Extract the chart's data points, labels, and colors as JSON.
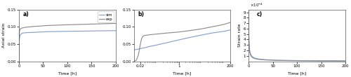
{
  "panel_a": {
    "label": "a)",
    "xlabel": "Time [h]",
    "ylabel": "Axial strain",
    "xlim": [
      0,
      200
    ],
    "ylim": [
      0,
      0.15
    ],
    "yticks": [
      0,
      0.05,
      0.1,
      0.15
    ],
    "xticks": [
      0,
      50,
      100,
      150,
      200
    ],
    "sim_color": "#7b9dd4",
    "exp_color": "#888888",
    "legend_labels": [
      "sim",
      "exp"
    ],
    "sim_x": [
      0,
      0.5,
      1,
      1.5,
      2,
      3,
      5,
      8,
      15,
      30,
      60,
      100,
      150,
      200
    ],
    "sim_y": [
      0.0,
      0.055,
      0.065,
      0.07,
      0.073,
      0.077,
      0.08,
      0.082,
      0.083,
      0.084,
      0.086,
      0.087,
      0.088,
      0.089
    ],
    "exp_x": [
      0,
      0.5,
      1,
      1.5,
      2,
      3,
      5,
      8,
      15,
      30,
      60,
      100,
      150,
      200
    ],
    "exp_y": [
      0.0,
      0.075,
      0.085,
      0.089,
      0.091,
      0.094,
      0.096,
      0.097,
      0.099,
      0.101,
      0.104,
      0.106,
      0.108,
      0.11
    ]
  },
  "panel_b": {
    "label": "b)",
    "xlabel": "Time [h]",
    "xlim_log": [
      0.01,
      200
    ],
    "ylim": [
      0,
      0.15
    ],
    "yticks": [
      0,
      0.05,
      0.1,
      0.15
    ],
    "xticks_log": [
      0.02,
      1,
      200
    ],
    "xtick_labels": [
      "0.02",
      "1",
      "200"
    ],
    "sim_color": "#7b9dd4",
    "exp_color": "#888888",
    "sim_x": [
      0.01,
      0.015,
      0.02,
      0.03,
      0.05,
      0.1,
      0.3,
      1,
      3,
      10,
      30,
      100,
      200
    ],
    "sim_y": [
      0.033,
      0.035,
      0.037,
      0.039,
      0.043,
      0.047,
      0.054,
      0.062,
      0.069,
      0.076,
      0.082,
      0.087,
      0.091
    ],
    "exp_x": [
      0.01,
      0.013,
      0.016,
      0.019,
      0.022,
      0.025,
      0.03,
      0.05,
      0.1,
      0.3,
      1,
      3,
      10,
      30,
      100,
      200
    ],
    "exp_y": [
      0.0,
      0.003,
      0.018,
      0.045,
      0.065,
      0.072,
      0.075,
      0.077,
      0.079,
      0.082,
      0.085,
      0.089,
      0.094,
      0.1,
      0.107,
      0.113
    ]
  },
  "panel_c": {
    "label": "c)",
    "xlabel": "Time [h]",
    "ylabel": "Strain rate",
    "xlim": [
      0,
      200
    ],
    "ylim": [
      0,
      0.00095
    ],
    "yticks": [
      0.0001,
      0.0002,
      0.0003,
      0.0004,
      0.0005,
      0.0006,
      0.0007,
      0.0008,
      0.0009
    ],
    "ytick_labels": [
      "1",
      "2",
      "3",
      "4",
      "5",
      "6",
      "7",
      "8",
      "9"
    ],
    "xticks": [
      0,
      50,
      100,
      150,
      200
    ],
    "sim_color": "#7b9dd4",
    "exp_color": "#888888",
    "sim_x": [
      0.01,
      0.1,
      0.3,
      0.5,
      0.8,
      1,
      1.5,
      2,
      3,
      5,
      8,
      12,
      20,
      35,
      60,
      100,
      150,
      200
    ],
    "sim_y": [
      0.00092,
      0.00075,
      0.00058,
      0.00048,
      0.00038,
      0.00033,
      0.00026,
      0.00021,
      0.00016,
      0.000115,
      8e-05,
      6e-05,
      4.2e-05,
      2.8e-05,
      1.9e-05,
      1.3e-05,
      1e-05,
      8e-06
    ],
    "exp_x": [
      0.01,
      0.1,
      0.3,
      0.5,
      0.8,
      1,
      1.5,
      2,
      3,
      5,
      8,
      12,
      20,
      35,
      60,
      100,
      150,
      200
    ],
    "exp_y": [
      0.0008,
      0.00065,
      0.0005,
      0.00041,
      0.00032,
      0.00028,
      0.00022,
      0.00018,
      0.000135,
      9.5e-05,
      6.8e-05,
      5e-05,
      3.5e-05,
      2.3e-05,
      1.5e-05,
      1e-05,
      7e-06,
      6e-06
    ]
  },
  "figure_bg": "#ffffff",
  "linewidth": 0.8
}
